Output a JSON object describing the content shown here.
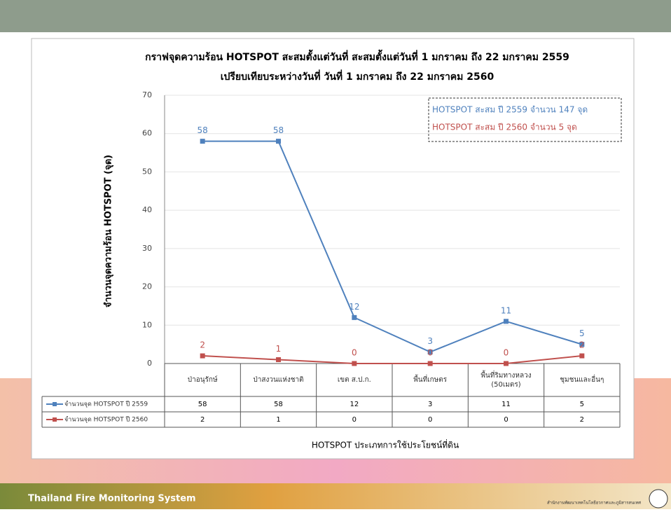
{
  "chart_data": {
    "type": "line",
    "title": "กราฟจุดความร้อน HOTSPOT สะสมตั้งแต่วันที่ สะสมตั้งแต่วันที่ 1 มกราคม ถึง 22 มกราคม 2559",
    "subtitle": "เปรียบเทียบระหว่างวันที่ วันที่ 1 มกราคม ถึง 22 มกราคม 2560",
    "ylabel": "จำนวนจุดความร้อน HOTSPOT (จุด)",
    "xlabel": "HOTSPOT ประเภทการใช้ประโยชน์ที่ดิน",
    "annotations": [
      "HOTSPOT สะสม ปี 2559 จำนวน 147 จุด",
      "HOTSPOT สะสม ปี 2560 จำนวน 5 จุด"
    ],
    "categories": [
      "ป่าอนุรักษ์",
      "ป่าสงวนแห่งชาติ",
      "เขต ส.ป.ก.",
      "พื้นที่เกษตร",
      "พื้นที่ริมทางหลวง (50เมตร)",
      "ชุมชนและอื่นๆ"
    ],
    "series": [
      {
        "name": "จำนวนจุด HOTSPOT ปี 2559",
        "color": "#4f81bd",
        "values": [
          58,
          58,
          12,
          3,
          11,
          5
        ]
      },
      {
        "name": "จำนวนจุด HOTSPOT ปี 2560",
        "color": "#c0504d",
        "values": [
          2,
          1,
          0,
          0,
          0,
          2
        ]
      }
    ],
    "ylim": [
      0,
      70
    ],
    "yticks": [
      0,
      10,
      20,
      30,
      40,
      50,
      60,
      70
    ],
    "grid": true
  },
  "footer": {
    "brand": "Thailand Fire Monitoring System",
    "org": "สำนักงานพัฒนาเทคโนโลยีอวกาศและภูมิสารสนเทศ"
  }
}
